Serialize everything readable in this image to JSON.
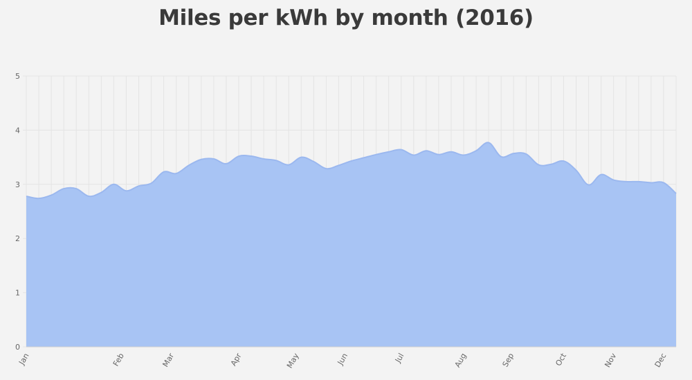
{
  "chart_data": {
    "type": "area",
    "title": "Miles per kWh by month (2016)",
    "xlabel": "",
    "ylabel": "",
    "ylim": [
      0,
      5
    ],
    "y_ticks": [
      0,
      1,
      2,
      3,
      4,
      5
    ],
    "x_tick_labels": [
      "Jan",
      "Feb",
      "Mar",
      "Apr",
      "May",
      "Jun",
      "Jul",
      "Aug",
      "Sep",
      "Oct",
      "Nov",
      "Dec"
    ],
    "grid": true,
    "color": "#a8c4f4",
    "line_color": "#9bb8ef",
    "x_range": [
      1,
      53
    ],
    "points": [
      [
        1,
        2.78
      ],
      [
        2,
        2.74
      ],
      [
        3,
        2.8
      ],
      [
        4,
        2.92
      ],
      [
        5,
        2.92
      ],
      [
        6,
        2.78
      ],
      [
        7,
        2.85
      ],
      [
        8,
        3.0
      ],
      [
        9,
        2.88
      ],
      [
        10,
        2.97
      ],
      [
        11,
        3.02
      ],
      [
        12,
        3.23
      ],
      [
        13,
        3.2
      ],
      [
        14,
        3.35
      ],
      [
        15,
        3.46
      ],
      [
        16,
        3.47
      ],
      [
        17,
        3.38
      ],
      [
        18,
        3.52
      ],
      [
        19,
        3.52
      ],
      [
        20,
        3.47
      ],
      [
        21,
        3.44
      ],
      [
        22,
        3.36
      ],
      [
        23,
        3.5
      ],
      [
        24,
        3.42
      ],
      [
        25,
        3.29
      ],
      [
        26,
        3.35
      ],
      [
        27,
        3.43
      ],
      [
        28,
        3.49
      ],
      [
        29,
        3.55
      ],
      [
        30,
        3.6
      ],
      [
        31,
        3.64
      ],
      [
        32,
        3.54
      ],
      [
        33,
        3.62
      ],
      [
        34,
        3.55
      ],
      [
        35,
        3.6
      ],
      [
        36,
        3.54
      ],
      [
        37,
        3.62
      ],
      [
        38,
        3.77
      ],
      [
        39,
        3.51
      ],
      [
        40,
        3.57
      ],
      [
        41,
        3.56
      ],
      [
        42,
        3.36
      ],
      [
        43,
        3.37
      ],
      [
        44,
        3.43
      ],
      [
        45,
        3.26
      ],
      [
        46,
        2.99
      ],
      [
        47,
        3.18
      ],
      [
        48,
        3.08
      ],
      [
        49,
        3.05
      ],
      [
        50,
        3.05
      ],
      [
        51,
        3.03
      ],
      [
        52,
        3.03
      ],
      [
        53,
        2.83
      ]
    ]
  }
}
